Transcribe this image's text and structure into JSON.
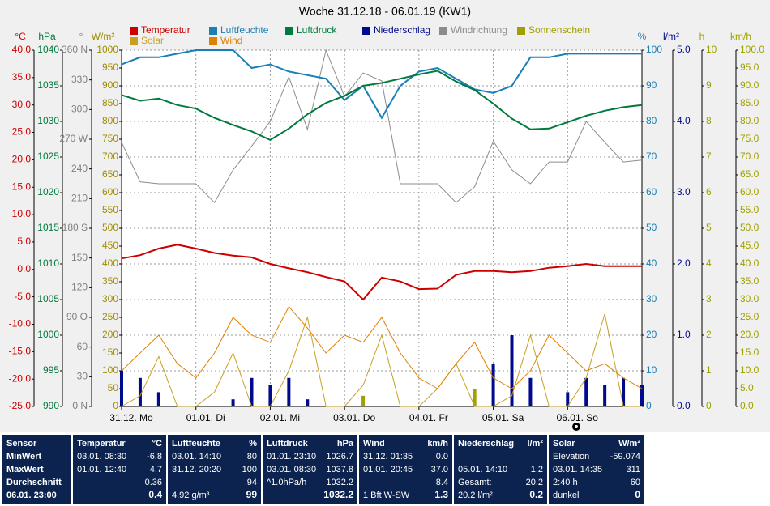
{
  "chart_data": {
    "type": "line",
    "title": "Woche 31.12.18 - 06.01.19 (KW1)",
    "x": [
      0,
      6,
      12,
      18,
      24,
      30,
      36,
      42,
      48,
      54,
      60,
      66,
      72,
      78,
      84,
      90,
      96,
      102,
      108,
      114,
      120,
      126,
      132,
      138,
      144,
      150,
      156,
      162,
      168
    ],
    "xlim": [
      0,
      168
    ],
    "xticks": [
      {
        "value": 0,
        "label": "31.12. Mo"
      },
      {
        "value": 24,
        "label": "01.01. Di"
      },
      {
        "value": 48,
        "label": "02.01. Mi"
      },
      {
        "value": 72,
        "label": "03.01. Do"
      },
      {
        "value": 96,
        "label": "04.01. Fr"
      },
      {
        "value": 120,
        "label": "05.01. Sa"
      },
      {
        "value": 144,
        "label": "06.01. So"
      }
    ],
    "grid": true,
    "axes": {
      "y1": {
        "unit": "°C",
        "color": "#cc0000",
        "lim": [
          -25,
          40
        ],
        "ticks": [
          {
            "value": 40,
            "label": "40.0"
          },
          {
            "value": 35,
            "label": "35.0"
          },
          {
            "value": 30,
            "label": "30.0"
          },
          {
            "value": 25,
            "label": "25.0"
          },
          {
            "value": 20,
            "label": "20.0"
          },
          {
            "value": 15,
            "label": "15.0"
          },
          {
            "value": 10,
            "label": "10.0"
          },
          {
            "value": 5,
            "label": "5.0"
          },
          {
            "value": 0,
            "label": "0.0"
          },
          {
            "value": -5,
            "label": "-5.0"
          },
          {
            "value": -10,
            "label": "-10.0"
          },
          {
            "value": -15,
            "label": "-15.0"
          },
          {
            "value": -20,
            "label": "-20.0"
          },
          {
            "value": -25,
            "label": "-25.0"
          }
        ]
      },
      "y2": {
        "unit": "hPa",
        "color": "#007a3d",
        "lim": [
          990,
          1040
        ],
        "ticks": [
          1040,
          1035,
          1030,
          1025,
          1020,
          1015,
          1010,
          1005,
          1000,
          995,
          990
        ]
      },
      "y3": {
        "unit": "°",
        "color": "#808080",
        "lim": [
          0,
          360
        ],
        "ticks": [
          {
            "value": 360,
            "label": "360 N"
          },
          330,
          300,
          {
            "value": 270,
            "label": "270 W"
          },
          240,
          210,
          {
            "value": 180,
            "label": "180 S"
          },
          150,
          120,
          {
            "value": 90,
            "label": "90 O"
          },
          60,
          30,
          {
            "value": 0,
            "label": "0 N"
          }
        ]
      },
      "y4": {
        "unit": "W/m²",
        "color": "#a08c00",
        "lim": [
          0,
          1000
        ],
        "ticks": [
          1000,
          950,
          900,
          850,
          800,
          750,
          700,
          650,
          600,
          550,
          500,
          450,
          400,
          350,
          300,
          250,
          200,
          150,
          100,
          50,
          0
        ]
      },
      "y5": {
        "unit": "%",
        "color": "#1a7fb5",
        "lim": [
          0,
          100
        ],
        "ticks": [
          100,
          90,
          80,
          70,
          60,
          50,
          40,
          30,
          20,
          10,
          0
        ]
      },
      "y6": {
        "unit": "l/m²",
        "color": "#000a8c",
        "lim": [
          0,
          5
        ],
        "ticks": [
          {
            "value": 5,
            "label": "5.0"
          },
          {
            "value": 4,
            "label": "4.0"
          },
          {
            "value": 3,
            "label": "3.0"
          },
          {
            "value": 2,
            "label": "2.0"
          },
          {
            "value": 1,
            "label": "1.0"
          },
          {
            "value": 0,
            "label": "0.0"
          }
        ]
      },
      "y7": {
        "unit": "h",
        "color": "#a0a000",
        "lim": [
          0,
          10
        ],
        "ticks": [
          10,
          9,
          8,
          7,
          6,
          5,
          4,
          3,
          2,
          1,
          0
        ]
      },
      "y8": {
        "unit": "km/h",
        "color": "#a0a000",
        "lim": [
          0,
          100
        ],
        "ticks": [
          {
            "value": 100,
            "label": "100.0"
          },
          {
            "value": 95,
            "label": "95.0"
          },
          {
            "value": 90,
            "label": "90.0"
          },
          {
            "value": 85,
            "label": "85.0"
          },
          {
            "value": 80,
            "label": "80.0"
          },
          {
            "value": 75,
            "label": "75.0"
          },
          {
            "value": 70,
            "label": "70.0"
          },
          {
            "value": 65,
            "label": "65.0"
          },
          {
            "value": 60,
            "label": "60.0"
          },
          {
            "value": 55,
            "label": "55.0"
          },
          {
            "value": 50,
            "label": "50.0"
          },
          {
            "value": 45,
            "label": "45.0"
          },
          {
            "value": 40,
            "label": "40.0"
          },
          {
            "value": 35,
            "label": "35.0"
          },
          {
            "value": 30,
            "label": "30.0"
          },
          {
            "value": 25,
            "label": "25.0"
          },
          {
            "value": 20,
            "label": "20.0"
          },
          {
            "value": 15,
            "label": "15.0"
          },
          {
            "value": 10,
            "label": "10.0"
          },
          {
            "value": 5,
            "label": "5.0"
          },
          {
            "value": 0,
            "label": "0.0"
          }
        ]
      }
    },
    "series": [
      {
        "name": "Temperatur",
        "color": "#cc0000",
        "type": "line",
        "axis": "y1",
        "values": [
          2.0,
          2.6,
          3.8,
          4.5,
          3.8,
          3.0,
          2.5,
          2.2,
          1.0,
          0.2,
          -0.5,
          -1.4,
          -2.2,
          -5.5,
          -1.5,
          -2.2,
          -3.6,
          -3.5,
          -1.0,
          -0.3,
          -0.3,
          -0.5,
          -0.3,
          0.3,
          0.6,
          1.0,
          0.6,
          0.6,
          0.6
        ]
      },
      {
        "name": "Luftfeuchte",
        "color": "#1a7fb5",
        "type": "line",
        "axis": "y5",
        "values": [
          96,
          98,
          98,
          99,
          100,
          100,
          100,
          95,
          96,
          94,
          93,
          92,
          86,
          90,
          81,
          90,
          94,
          95,
          92,
          89,
          88,
          90,
          98,
          98,
          99,
          99,
          99,
          99,
          99
        ]
      },
      {
        "name": "Luftdruck",
        "color": "#007a3d",
        "type": "line",
        "axis": "y2",
        "values": [
          1033.7,
          1032.9,
          1033.2,
          1032.3,
          1031.8,
          1030.5,
          1029.5,
          1028.6,
          1027.4,
          1029.0,
          1031.0,
          1032.6,
          1033.6,
          1035.0,
          1035.4,
          1036.0,
          1036.6,
          1037.1,
          1035.6,
          1034.4,
          1032.5,
          1030.4,
          1028.9,
          1029.0,
          1029.9,
          1030.8,
          1031.5,
          1032.0,
          1032.3
        ]
      },
      {
        "name": "Niederschlag",
        "color": "#000a8c",
        "type": "bar",
        "axis": "y6",
        "values": [
          0.5,
          0.4,
          0.2,
          0,
          0,
          0,
          0.1,
          0.4,
          0.3,
          0.4,
          0.1,
          0,
          0,
          0,
          0,
          0,
          0,
          0,
          0,
          0,
          0.6,
          1.0,
          0.4,
          0,
          0.2,
          0.4,
          0.3,
          0.4,
          0.3
        ]
      },
      {
        "name": "Windrichtung",
        "color": "#8c8c8c",
        "type": "line",
        "axis": "y3",
        "values": [
          267,
          227,
          225,
          225,
          225,
          206,
          239,
          263,
          288,
          333,
          280,
          360,
          313,
          337,
          329,
          225,
          225,
          225,
          206,
          222,
          268,
          239,
          225,
          247,
          247,
          288,
          267,
          247,
          249
        ]
      },
      {
        "name": "Sonnenschein",
        "color": "#a0a000",
        "type": "bar",
        "axis": "y7",
        "values": [
          0,
          0,
          0,
          0,
          0,
          0,
          0,
          0,
          0,
          0,
          0,
          0,
          0,
          0.3,
          0,
          0,
          0,
          0,
          0,
          0.5,
          0,
          0,
          0,
          0,
          0,
          0,
          0,
          0,
          0
        ]
      },
      {
        "name": "Solar",
        "color": "#c8a020",
        "type": "line",
        "axis": "y4",
        "values": [
          0,
          30,
          140,
          0,
          0,
          40,
          150,
          0,
          0,
          100,
          250,
          0,
          0,
          60,
          200,
          0,
          0,
          50,
          120,
          0,
          0,
          30,
          200,
          0,
          0,
          80,
          260,
          0,
          0
        ]
      },
      {
        "name": "Wind",
        "color": "#e08000",
        "type": "line",
        "axis": "y8",
        "values": [
          10,
          15,
          20,
          12,
          8,
          15,
          25,
          20,
          18,
          28,
          22,
          15,
          20,
          18,
          25,
          15,
          8,
          5,
          12,
          18,
          8,
          5,
          10,
          20,
          15,
          10,
          12,
          8,
          5
        ]
      }
    ]
  },
  "table": {
    "sensor": {
      "title": "Sensor",
      "rows": [
        "MinWert",
        "MaxWert",
        "Durchschnitt",
        "06.01. 23:00"
      ]
    },
    "blocks": [
      {
        "title": "Temperatur",
        "unit": "°C",
        "rows": [
          [
            "03.01. 08:30",
            "-6.8"
          ],
          [
            "01.01. 12:40",
            "4.7"
          ],
          [
            "0.36"
          ],
          [
            "0.4"
          ]
        ]
      },
      {
        "title": "Luftfeuchte",
        "unit": "%",
        "rows": [
          [
            "03.01. 14:10",
            "80"
          ],
          [
            "31.12. 20:20",
            "100"
          ],
          [
            "94"
          ],
          [
            "4.92 g/m³",
            "99"
          ]
        ]
      },
      {
        "title": "Luftdruck",
        "unit": "hPa",
        "rows": [
          [
            "01.01. 23:10",
            "1026.7"
          ],
          [
            "03.01. 08:30",
            "1037.8"
          ],
          [
            "^1.0hPa/h",
            "1032.2"
          ],
          [
            "1032.2"
          ]
        ]
      },
      {
        "title": "Wind",
        "unit": "km/h",
        "rows": [
          [
            "31.12. 01:35",
            "0.0"
          ],
          [
            "01.01. 20:45",
            "37.0"
          ],
          [
            "8.4"
          ],
          [
            "1 Bft W-SW",
            "1.3"
          ]
        ]
      },
      {
        "title": "Niederschlag",
        "unit": "l/m²",
        "rows": [
          [],
          [
            "05.01. 14:10",
            "1.2"
          ],
          [
            "Gesamt:",
            "20.2"
          ],
          [
            "20.2 l/m²",
            "0.2"
          ]
        ]
      },
      {
        "title": "Solar",
        "unit": "W/m²",
        "rows": [
          [
            "Elevation",
            "-59.074"
          ],
          [
            "03.01. 14:35",
            "311"
          ],
          [
            "2:40 h",
            "60"
          ],
          [
            "dunkel",
            "0"
          ]
        ]
      }
    ]
  }
}
